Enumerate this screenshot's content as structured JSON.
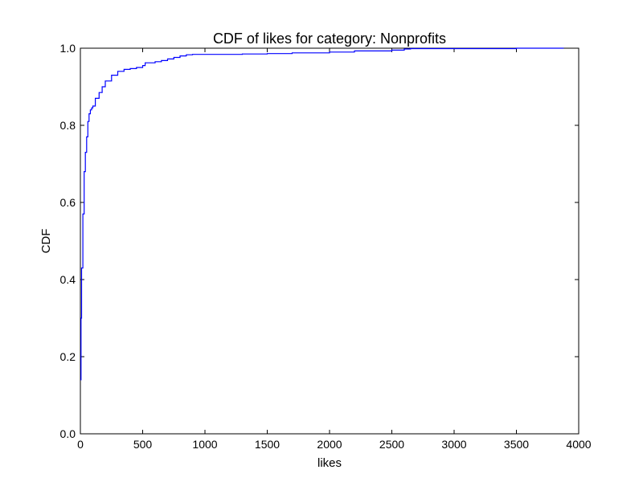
{
  "chart_data": {
    "type": "line",
    "title": "CDF of likes for category: Nonprofits",
    "xlabel": "likes",
    "ylabel": "CDF",
    "xlim": [
      0,
      4000
    ],
    "ylim": [
      0.0,
      1.0
    ],
    "x_ticks": [
      "0",
      "500",
      "1000",
      "1500",
      "2000",
      "2500",
      "3000",
      "3500",
      "4000"
    ],
    "y_ticks": [
      "0.0",
      "0.2",
      "0.4",
      "0.6",
      "0.8",
      "1.0"
    ],
    "grid": false,
    "line_color": "#0000ff",
    "series": [
      {
        "x": [
          0,
          5,
          10,
          20,
          30,
          40,
          50,
          60,
          70,
          80,
          90,
          100,
          120,
          150,
          175,
          200,
          250,
          300,
          350,
          400,
          450,
          500,
          520,
          600,
          650,
          700,
          750,
          800,
          850,
          900,
          1000,
          1300,
          1500,
          1700,
          2000,
          2200,
          2500,
          2600,
          2650,
          3000,
          3500,
          3880
        ],
        "y": [
          0.14,
          0.3,
          0.43,
          0.57,
          0.68,
          0.73,
          0.77,
          0.81,
          0.83,
          0.84,
          0.845,
          0.85,
          0.87,
          0.885,
          0.9,
          0.915,
          0.93,
          0.94,
          0.945,
          0.947,
          0.95,
          0.955,
          0.962,
          0.965,
          0.968,
          0.972,
          0.976,
          0.98,
          0.983,
          0.984,
          0.984,
          0.985,
          0.986,
          0.988,
          0.99,
          0.993,
          0.995,
          0.998,
          0.999,
          0.999,
          1.0,
          1.0
        ]
      }
    ]
  }
}
